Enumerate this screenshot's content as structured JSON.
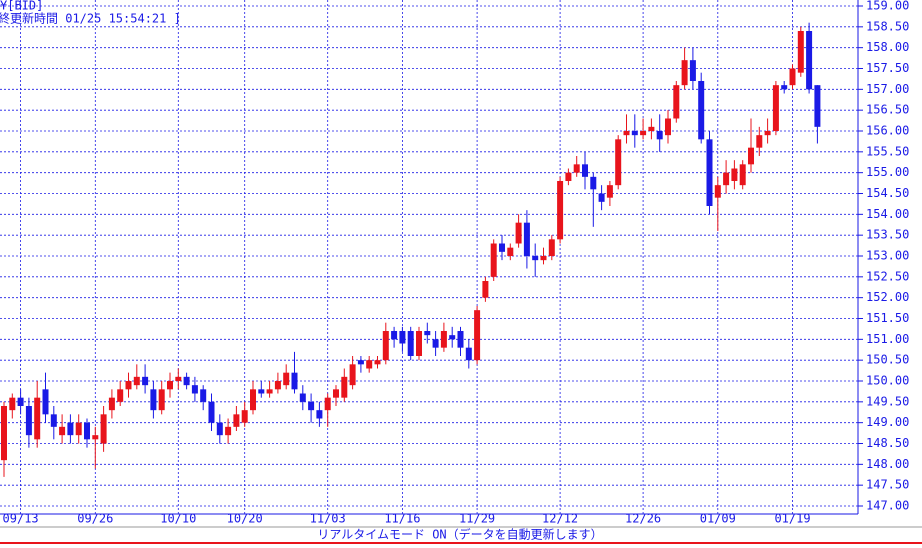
{
  "chart_data": {
    "type": "candlestick",
    "title": "¥[BID]",
    "subtitle": "終更新時間 01/25 15:54:21 ]",
    "status": "リアルタイムモード ON（データを自動更新します）",
    "up_color": "#e8141c",
    "down_color": "#1a1ae6",
    "grid": true,
    "ylim": [
      147,
      159
    ],
    "yticks": [
      {
        "value": 147,
        "label": "147.00"
      },
      {
        "value": 147.5,
        "label": "147.50"
      },
      {
        "value": 148,
        "label": "148.00"
      },
      {
        "value": 148.5,
        "label": "148.50"
      },
      {
        "value": 149,
        "label": "149.00"
      },
      {
        "value": 149.5,
        "label": "149.50"
      },
      {
        "value": 150,
        "label": "150.00"
      },
      {
        "value": 150.5,
        "label": "150.50"
      },
      {
        "value": 151,
        "label": "151.00"
      },
      {
        "value": 151.5,
        "label": "151.50"
      },
      {
        "value": 152,
        "label": "152.00"
      },
      {
        "value": 152.5,
        "label": "152.50"
      },
      {
        "value": 153,
        "label": "153.00"
      },
      {
        "value": 153.5,
        "label": "153.50"
      },
      {
        "value": 154,
        "label": "154.00"
      },
      {
        "value": 154.5,
        "label": "154.50"
      },
      {
        "value": 155,
        "label": "155.00"
      },
      {
        "value": 155.5,
        "label": "155.50"
      },
      {
        "value": 156,
        "label": "156.00"
      },
      {
        "value": 156.5,
        "label": "156.50"
      },
      {
        "value": 157,
        "label": "157.00"
      },
      {
        "value": 157.5,
        "label": "157.50"
      },
      {
        "value": 158,
        "label": "158.00"
      },
      {
        "value": 158.5,
        "label": "158.50"
      },
      {
        "value": 159,
        "label": "159.00"
      }
    ],
    "categories": [
      null,
      null,
      "09/13",
      null,
      null,
      null,
      null,
      null,
      null,
      null,
      null,
      "09/26",
      null,
      null,
      null,
      null,
      null,
      null,
      null,
      null,
      null,
      "10/10",
      null,
      null,
      null,
      null,
      null,
      null,
      null,
      "10/20",
      null,
      null,
      null,
      null,
      null,
      null,
      null,
      null,
      null,
      "11/03",
      null,
      null,
      null,
      null,
      null,
      null,
      null,
      null,
      "11/16",
      null,
      null,
      null,
      null,
      null,
      null,
      null,
      null,
      "11/29",
      null,
      null,
      null,
      null,
      null,
      null,
      null,
      null,
      null,
      "12/12",
      null,
      null,
      null,
      null,
      null,
      null,
      null,
      null,
      null,
      "12/26",
      null,
      null,
      null,
      null,
      null,
      null,
      null,
      null,
      "01/09",
      null,
      null,
      null,
      null,
      null,
      null,
      null,
      null,
      "01/19",
      null,
      null,
      null
    ],
    "values": [
      [
        148.1,
        149.5,
        147.7,
        149.4
      ],
      [
        149.3,
        149.7,
        149.1,
        149.6
      ],
      [
        149.6,
        149.8,
        149.2,
        149.4
      ],
      [
        149.4,
        149.6,
        148.4,
        148.7
      ],
      [
        148.6,
        150.0,
        148.4,
        149.6
      ],
      [
        149.8,
        150.2,
        149.0,
        149.2
      ],
      [
        149.2,
        149.4,
        148.6,
        148.9
      ],
      [
        148.7,
        149.2,
        148.5,
        148.9
      ],
      [
        149.0,
        149.2,
        148.5,
        148.7
      ],
      [
        148.7,
        149.2,
        148.5,
        149.0
      ],
      [
        149.0,
        149.1,
        148.4,
        148.6
      ],
      [
        148.6,
        148.9,
        147.9,
        148.7
      ],
      [
        148.5,
        149.4,
        148.3,
        149.2
      ],
      [
        149.3,
        149.8,
        149.1,
        149.6
      ],
      [
        149.5,
        150.0,
        149.4,
        149.8
      ],
      [
        149.8,
        150.2,
        149.6,
        150.0
      ],
      [
        149.9,
        150.4,
        149.8,
        150.1
      ],
      [
        150.1,
        150.4,
        149.7,
        149.9
      ],
      [
        149.8,
        150.0,
        149.1,
        149.3
      ],
      [
        149.3,
        150.0,
        149.2,
        149.8
      ],
      [
        149.8,
        150.2,
        149.6,
        150.0
      ],
      [
        150.0,
        150.3,
        149.8,
        150.1
      ],
      [
        150.1,
        150.2,
        149.8,
        149.9
      ],
      [
        149.9,
        150.1,
        149.5,
        149.7
      ],
      [
        149.8,
        149.9,
        149.3,
        149.5
      ],
      [
        149.5,
        149.7,
        148.8,
        149.0
      ],
      [
        149.0,
        149.2,
        148.5,
        148.7
      ],
      [
        148.7,
        149.1,
        148.5,
        148.9
      ],
      [
        148.9,
        149.4,
        148.8,
        149.2
      ],
      [
        149.0,
        149.5,
        148.9,
        149.3
      ],
      [
        149.3,
        150.0,
        149.2,
        149.8
      ],
      [
        149.8,
        150.0,
        149.6,
        149.7
      ],
      [
        149.7,
        150.0,
        149.6,
        149.8
      ],
      [
        149.8,
        150.2,
        149.7,
        150.0
      ],
      [
        149.9,
        150.4,
        149.8,
        150.2
      ],
      [
        150.2,
        150.7,
        149.7,
        149.8
      ],
      [
        149.7,
        149.9,
        149.3,
        149.5
      ],
      [
        149.5,
        149.7,
        149.0,
        149.3
      ],
      [
        149.3,
        149.5,
        148.9,
        149.1
      ],
      [
        149.3,
        149.7,
        148.9,
        149.6
      ],
      [
        149.6,
        149.9,
        149.4,
        149.8
      ],
      [
        149.6,
        150.3,
        149.5,
        150.1
      ],
      [
        149.9,
        150.6,
        149.8,
        150.4
      ],
      [
        150.5,
        150.6,
        150.2,
        150.4
      ],
      [
        150.3,
        150.6,
        150.2,
        150.5
      ],
      [
        150.4,
        150.6,
        150.3,
        150.5
      ],
      [
        150.5,
        151.4,
        150.4,
        151.2
      ],
      [
        151.2,
        151.3,
        150.8,
        151.0
      ],
      [
        151.2,
        151.3,
        150.7,
        150.9
      ],
      [
        151.2,
        151.3,
        150.5,
        150.6
      ],
      [
        150.6,
        151.3,
        150.5,
        151.2
      ],
      [
        151.2,
        151.4,
        150.9,
        151.1
      ],
      [
        151.0,
        151.2,
        150.6,
        150.8
      ],
      [
        150.8,
        151.4,
        150.7,
        151.2
      ],
      [
        151.1,
        151.3,
        150.8,
        151.0
      ],
      [
        151.2,
        151.3,
        150.6,
        150.8
      ],
      [
        150.8,
        151.0,
        150.3,
        150.5
      ],
      [
        150.5,
        151.8,
        150.4,
        151.7
      ],
      [
        152.0,
        152.5,
        151.9,
        152.4
      ],
      [
        152.5,
        153.4,
        152.4,
        153.3
      ],
      [
        153.3,
        153.5,
        152.9,
        153.1
      ],
      [
        153.0,
        153.3,
        152.9,
        153.2
      ],
      [
        153.3,
        154.0,
        153.2,
        153.8
      ],
      [
        153.8,
        154.1,
        152.7,
        153.0
      ],
      [
        153.0,
        153.3,
        152.5,
        152.9
      ],
      [
        152.9,
        153.2,
        152.8,
        153.0
      ],
      [
        153.0,
        153.5,
        152.9,
        153.4
      ],
      [
        153.4,
        154.9,
        153.3,
        154.8
      ],
      [
        154.8,
        155.1,
        154.7,
        155.0
      ],
      [
        155.0,
        155.4,
        154.9,
        155.2
      ],
      [
        155.2,
        155.5,
        154.6,
        154.9
      ],
      [
        154.9,
        155.0,
        153.7,
        154.6
      ],
      [
        154.5,
        154.7,
        154.1,
        154.3
      ],
      [
        154.4,
        154.8,
        154.2,
        154.7
      ],
      [
        154.7,
        155.9,
        154.6,
        155.8
      ],
      [
        155.9,
        156.4,
        155.7,
        156.0
      ],
      [
        156.0,
        156.4,
        155.6,
        155.9
      ],
      [
        155.9,
        156.3,
        155.8,
        156.0
      ],
      [
        156.0,
        156.3,
        155.8,
        156.1
      ],
      [
        156.0,
        156.4,
        155.5,
        155.8
      ],
      [
        155.9,
        156.5,
        155.7,
        156.3
      ],
      [
        156.3,
        157.2,
        156.2,
        157.1
      ],
      [
        157.1,
        158.0,
        157.0,
        157.7
      ],
      [
        157.7,
        158.0,
        157.0,
        157.2
      ],
      [
        157.2,
        157.4,
        155.7,
        155.8
      ],
      [
        155.8,
        156.0,
        154.0,
        154.2
      ],
      [
        154.4,
        154.9,
        153.6,
        154.7
      ],
      [
        154.7,
        155.3,
        154.5,
        155.0
      ],
      [
        154.8,
        155.3,
        154.6,
        155.1
      ],
      [
        154.7,
        155.3,
        154.6,
        155.2
      ],
      [
        155.2,
        156.3,
        155.0,
        155.6
      ],
      [
        155.6,
        156.1,
        155.4,
        155.9
      ],
      [
        155.9,
        156.3,
        155.7,
        156.0
      ],
      [
        156.0,
        157.2,
        155.9,
        157.1
      ],
      [
        157.1,
        157.2,
        156.9,
        157.0
      ],
      [
        157.1,
        157.6,
        157.0,
        157.5
      ],
      [
        157.4,
        158.5,
        157.3,
        158.4
      ],
      [
        158.4,
        158.6,
        156.9,
        157.0
      ],
      [
        157.1,
        157.1,
        155.7,
        156.1
      ]
    ]
  }
}
